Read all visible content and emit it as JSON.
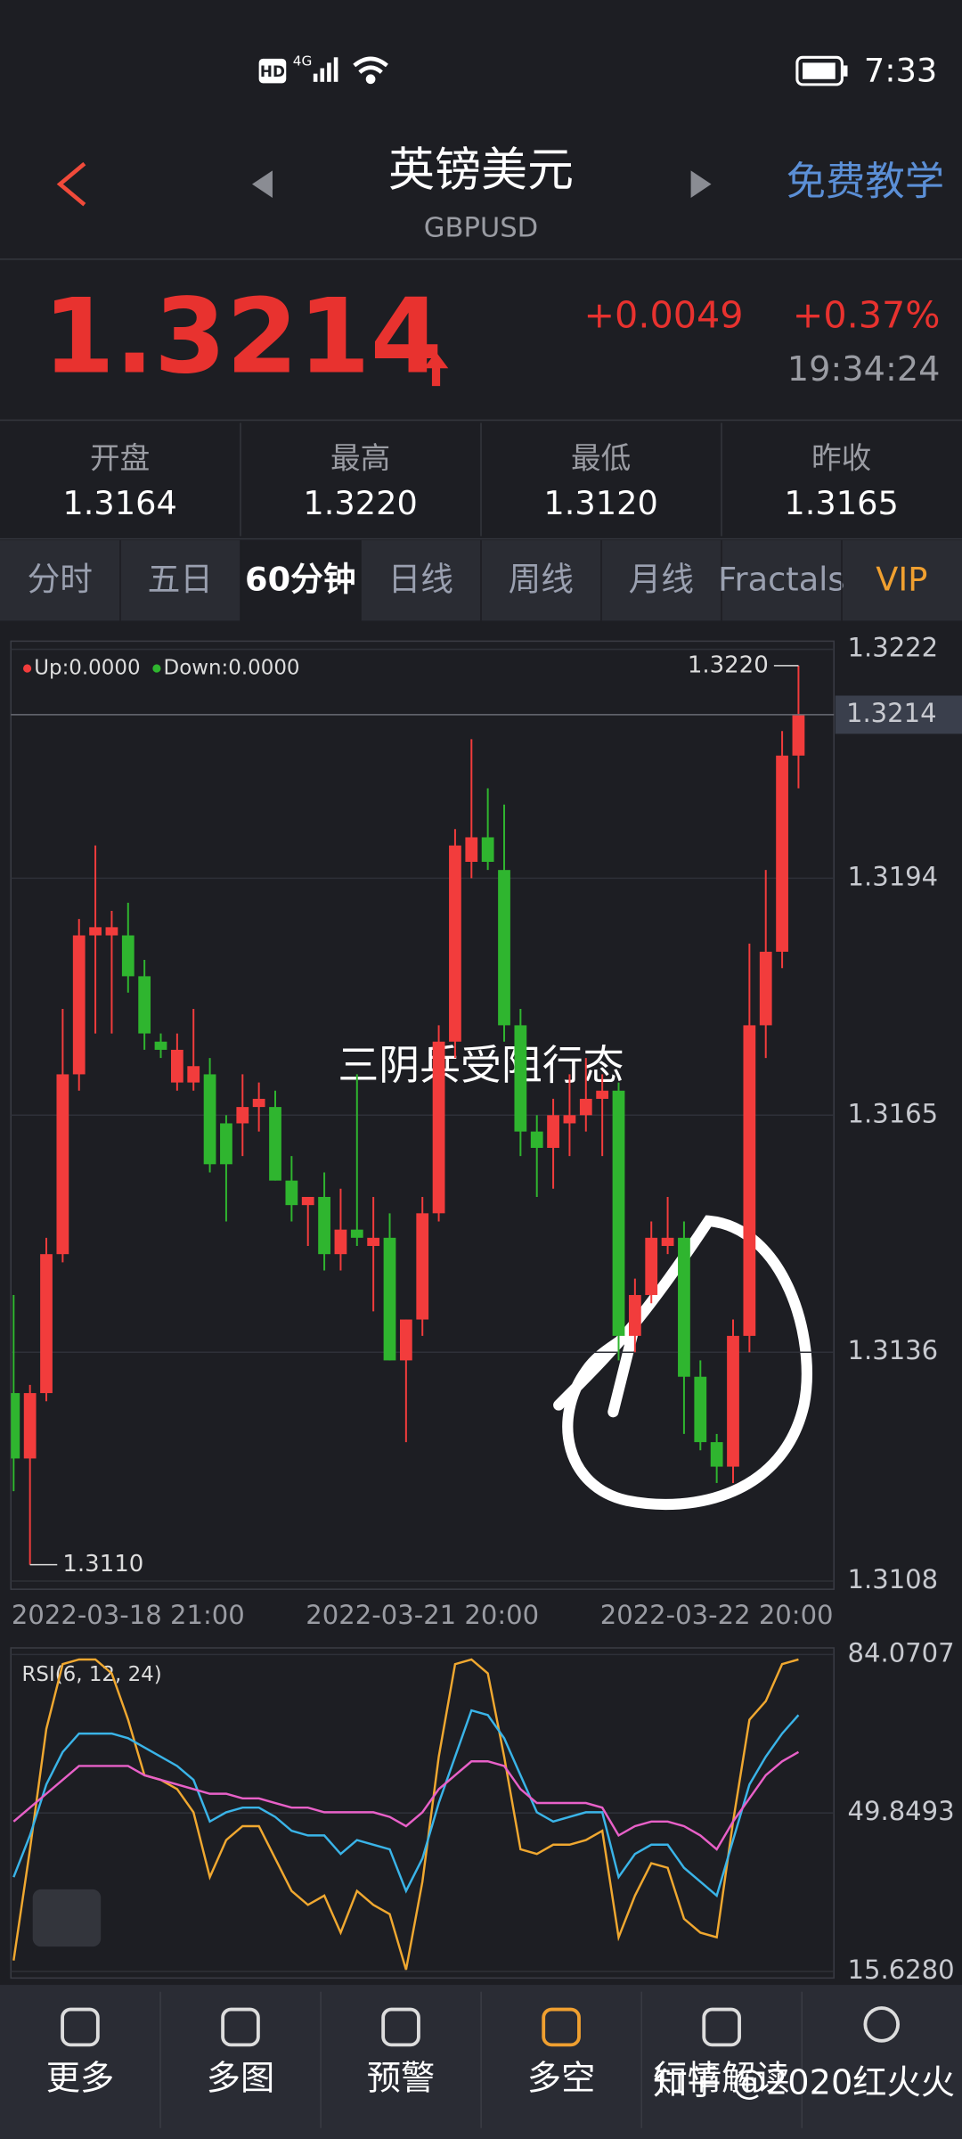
{
  "status_bar": {
    "hd": "HD",
    "network": "4G",
    "time": "7:33"
  },
  "header": {
    "title": "英镑美元",
    "symbol": "GBPUSD",
    "tutorial": "免费教学"
  },
  "quote": {
    "price": "1.3214",
    "change": "+0.0049",
    "change_pct": "+0.37%",
    "time": "19:34:24"
  },
  "stats": [
    {
      "label": "开盘",
      "value": "1.3164"
    },
    {
      "label": "最高",
      "value": "1.3220"
    },
    {
      "label": "最低",
      "value": "1.3120"
    },
    {
      "label": "昨收",
      "value": "1.3165"
    }
  ],
  "tabs": [
    "分时",
    "五日",
    "60分钟",
    "日线",
    "周线",
    "月线",
    "Fractals",
    "VIP"
  ],
  "active_tab": 2,
  "chart_data": [
    {
      "type": "candlestick",
      "indicator_labels": [
        "Up:0.0000",
        "Down:0.0000"
      ],
      "annotation": "三阴兵受阻行态",
      "up_color": "#f23c3c",
      "down_color": "#2fb52f",
      "categories": [
        null,
        null,
        null,
        null,
        null,
        null,
        null,
        "2022-03-18 21:00",
        null,
        null,
        null,
        null,
        null,
        null,
        null,
        null,
        null,
        null,
        null,
        null,
        null,
        null,
        null,
        null,
        null,
        "2022-03-21 20:00",
        null,
        null,
        null,
        null,
        null,
        null,
        null,
        null,
        null,
        null,
        null,
        null,
        null,
        null,
        null,
        null,
        null,
        "2022-03-22 20:00",
        null,
        null,
        null,
        null,
        null
      ],
      "open": [
        1.3131,
        1.3123,
        1.3131,
        1.3148,
        1.317,
        1.3187,
        1.3187,
        1.3187,
        1.3182,
        1.3174,
        1.3169,
        1.3169,
        1.317,
        1.3164,
        1.3164,
        1.3166,
        1.3166,
        1.3157,
        1.3154,
        1.3155,
        1.3148,
        1.3151,
        1.3149,
        1.315,
        1.3135,
        1.314,
        1.3153,
        1.3174,
        1.3196,
        1.3199,
        1.3195,
        1.3176,
        1.3163,
        1.3161,
        1.3164,
        1.3165,
        1.3167,
        1.3168,
        1.3138,
        1.3143,
        1.3149,
        1.315,
        1.3133,
        1.3125,
        1.3122,
        1.3138,
        1.3176,
        1.3185,
        1.3209
      ],
      "high": [
        1.3143,
        1.3132,
        1.315,
        1.3178,
        1.3189,
        1.3198,
        1.319,
        1.3191,
        1.3184,
        1.3175,
        1.3175,
        1.3178,
        1.3172,
        1.3165,
        1.317,
        1.3169,
        1.3168,
        1.316,
        1.3155,
        1.3158,
        1.3156,
        1.317,
        1.3155,
        1.3153,
        1.314,
        1.3155,
        1.3176,
        1.32,
        1.3211,
        1.3205,
        1.3203,
        1.3178,
        1.3165,
        1.3167,
        1.317,
        1.3172,
        1.317,
        1.3169,
        1.3145,
        1.3152,
        1.3155,
        1.3152,
        1.3135,
        1.3126,
        1.314,
        1.3186,
        1.3195,
        1.3212,
        1.322
      ],
      "low": [
        1.3119,
        1.311,
        1.313,
        1.3147,
        1.3168,
        1.3175,
        1.3175,
        1.318,
        1.3173,
        1.3172,
        1.3168,
        1.3168,
        1.3158,
        1.3152,
        1.316,
        1.3163,
        1.3157,
        1.3152,
        1.3149,
        1.3146,
        1.3146,
        1.3149,
        1.3141,
        1.3135,
        1.3125,
        1.3138,
        1.3152,
        1.3172,
        1.3194,
        1.3195,
        1.3174,
        1.316,
        1.3155,
        1.3156,
        1.316,
        1.3163,
        1.316,
        1.3135,
        1.3136,
        1.3142,
        1.3148,
        1.3126,
        1.3124,
        1.312,
        1.312,
        1.3136,
        1.3172,
        1.3183,
        1.3205
      ],
      "close": [
        1.3123,
        1.3131,
        1.3148,
        1.317,
        1.3187,
        1.3188,
        1.3188,
        1.3182,
        1.3175,
        1.3173,
        1.3173,
        1.3171,
        1.3159,
        1.3159,
        1.3166,
        1.3167,
        1.3157,
        1.3154,
        1.3155,
        1.3148,
        1.3151,
        1.315,
        1.315,
        1.3135,
        1.314,
        1.3153,
        1.3174,
        1.3198,
        1.3199,
        1.3196,
        1.3176,
        1.3163,
        1.3161,
        1.3165,
        1.3165,
        1.3167,
        1.3168,
        1.3138,
        1.3143,
        1.315,
        1.315,
        1.3133,
        1.3125,
        1.3122,
        1.3138,
        1.3176,
        1.3185,
        1.3209,
        1.3214
      ],
      "ylim": [
        1.3107,
        1.3223
      ],
      "yticks": [
        1.3222,
        1.3194,
        1.3165,
        1.3136,
        1.3108
      ],
      "last_price": 1.3214,
      "high_marker": {
        "value": 1.322,
        "label": "1.3220"
      },
      "low_marker": {
        "value": 1.311,
        "label": "1.3110"
      },
      "grid": true
    },
    {
      "type": "line",
      "title": "RSI(6, 12, 24)",
      "series": [
        {
          "color": "#f0a830",
          "values": [
            18,
            42,
            68,
            82,
            83,
            83,
            80,
            70,
            58,
            57,
            55,
            50,
            36,
            44,
            47,
            47,
            40,
            33,
            30,
            32,
            24,
            33,
            30,
            28,
            16,
            35,
            62,
            82,
            83,
            80,
            62,
            42,
            41,
            43,
            43,
            44,
            46,
            23,
            32,
            39,
            38,
            27,
            24,
            23,
            48,
            70,
            74,
            82,
            83
          ]
        },
        {
          "color": "#3ab4e8",
          "values": [
            36,
            45,
            56,
            63,
            67,
            67,
            67,
            66,
            64,
            62,
            60,
            57,
            48,
            50,
            51,
            51,
            49,
            46,
            45,
            45,
            41,
            44,
            43,
            42,
            33,
            40,
            52,
            62,
            72,
            71,
            66,
            58,
            50,
            48,
            49,
            50,
            50,
            36,
            41,
            43,
            43,
            38,
            35,
            32,
            44,
            56,
            62,
            67,
            71
          ]
        },
        {
          "color": "#e860c8",
          "values": [
            48,
            51,
            54,
            57,
            60,
            60,
            60,
            60,
            58,
            57,
            56,
            55,
            54,
            54,
            53,
            53,
            52,
            51,
            51,
            50,
            50,
            50,
            50,
            49,
            47,
            50,
            55,
            58,
            61,
            61,
            60,
            55,
            52,
            52,
            52,
            52,
            51,
            45,
            47,
            48,
            48,
            47,
            45,
            42,
            48,
            53,
            58,
            61,
            63
          ]
        }
      ],
      "ylim": [
        14.2,
        85.5
      ],
      "yticks": [
        84.0707,
        49.8493,
        {
          "value": 15.628,
          "label": "15.6280"
        }
      ],
      "grid": true
    }
  ],
  "nav": [
    "更多",
    "多图",
    "预警",
    "多空",
    "行情解读"
  ],
  "watermark": "知乎 @2020红火火"
}
